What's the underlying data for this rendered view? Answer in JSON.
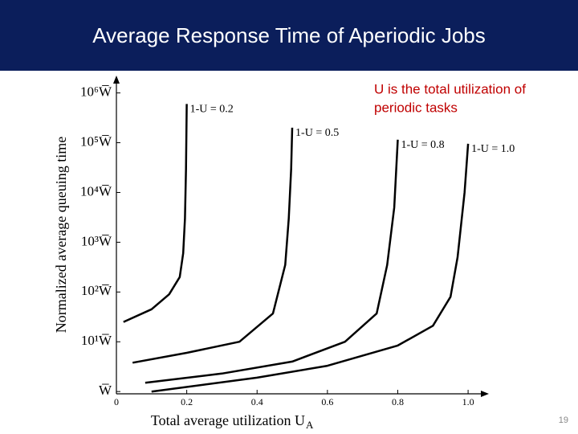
{
  "slide_title": "Average Response Time of Aperiodic Jobs",
  "note": [
    "U is the total utilization of",
    "periodic tasks"
  ],
  "page_number": "19",
  "chart_data": {
    "type": "line",
    "x_label": "Total average utilization U",
    "x_label_subscript": "A",
    "y_label": "Normalized average queuing time",
    "xlim": [
      0,
      1.05
    ],
    "xticks": [
      0,
      0.2,
      0.4,
      0.6,
      0.8,
      {
        "value": 1.0,
        "label": "1.0"
      }
    ],
    "ylim": [
      0.9,
      2000000
    ],
    "log_y": true,
    "yticks": [
      {
        "value": 1,
        "label": "W̅"
      },
      {
        "value": 10,
        "label": "10¹W̅"
      },
      {
        "value": 100,
        "label": "10²W̅"
      },
      {
        "value": 1000,
        "label": "10³W̅"
      },
      {
        "value": 10000,
        "label": "10⁴W̅"
      },
      {
        "value": 100000,
        "label": "10⁵W̅"
      },
      {
        "value": 1000000,
        "label": "10⁶W̅"
      }
    ],
    "series": [
      {
        "name": "1-U = 0.2",
        "color": "#000000",
        "x": [
          0.02,
          0.1,
          0.15,
          0.18,
          0.19,
          0.195,
          0.198,
          0.2
        ],
        "values": [
          25,
          45,
          90,
          200,
          600,
          3000,
          30000,
          600000
        ]
      },
      {
        "name": "1-U = 0.5",
        "color": "#000000",
        "x": [
          0.046,
          0.2,
          0.35,
          0.445,
          0.48,
          0.49,
          0.497,
          0.5
        ],
        "values": [
          3.8,
          6,
          10,
          37,
          350,
          3000,
          30000,
          200000
        ]
      },
      {
        "name": "1-U = 0.8",
        "color": "#000000",
        "x": [
          0.082,
          0.3,
          0.5,
          0.65,
          0.74,
          0.77,
          0.79,
          0.8
        ],
        "values": [
          1.5,
          2.3,
          4,
          10,
          37,
          350,
          5000,
          115000
        ]
      },
      {
        "name": "1-U = 1.0",
        "color": "#000000",
        "x": [
          0.1,
          0.4,
          0.6,
          0.8,
          0.9,
          0.95,
          0.97,
          0.99,
          1.0
        ],
        "values": [
          1,
          1.9,
          3.3,
          8.4,
          21,
          80,
          500,
          10000,
          95000
        ]
      }
    ]
  }
}
